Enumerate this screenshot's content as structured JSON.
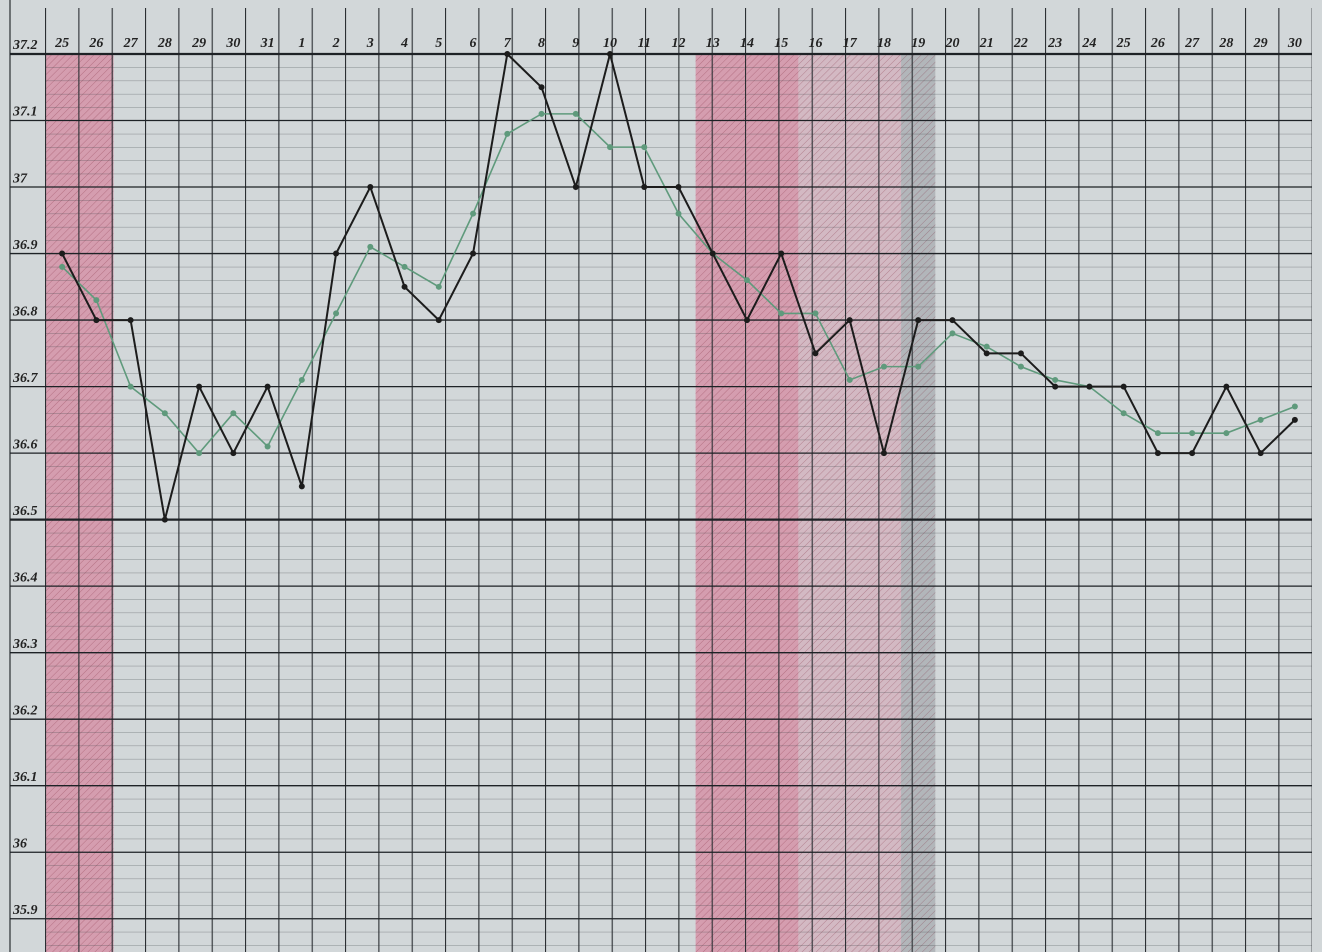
{
  "chart_data": {
    "type": "line",
    "categories": [
      "25",
      "26",
      "27",
      "28",
      "29",
      "30",
      "31",
      "1",
      "2",
      "3",
      "4",
      "5",
      "6",
      "7",
      "8",
      "9",
      "10",
      "11",
      "12",
      "13",
      "14",
      "15",
      "16",
      "17",
      "18",
      "19",
      "20",
      "21",
      "22",
      "23",
      "24",
      "25",
      "26",
      "27",
      "28",
      "29",
      "30"
    ],
    "series": [
      {
        "color": "#5f9a7c",
        "values": [
          36.88,
          36.83,
          36.7,
          36.66,
          36.6,
          36.66,
          36.61,
          36.71,
          36.81,
          36.91,
          36.88,
          36.85,
          36.96,
          37.08,
          37.11,
          37.11,
          37.06,
          37.06,
          36.96,
          36.9,
          36.86,
          36.81,
          36.81,
          36.71,
          36.73,
          36.73,
          36.78,
          36.76,
          36.73,
          36.71,
          36.7,
          36.66,
          36.63,
          36.63,
          36.63,
          36.65,
          36.67
        ]
      },
      {
        "color": "#1c1c1c",
        "values": [
          36.9,
          36.8,
          36.8,
          36.5,
          36.7,
          36.6,
          36.7,
          36.55,
          36.9,
          37.0,
          36.85,
          36.8,
          36.9,
          37.2,
          37.15,
          37.0,
          37.2,
          37.0,
          37.0,
          36.9,
          36.8,
          36.9,
          36.75,
          36.8,
          36.6,
          36.8,
          36.8,
          36.75,
          36.75,
          36.7,
          36.7,
          36.7,
          36.6,
          36.6,
          36.7,
          36.6,
          36.65
        ]
      }
    ],
    "ylim": [
      35.85,
      37.2
    ],
    "yticks": [
      37.2,
      37.1,
      37,
      36.9,
      36.8,
      36.7,
      36.6,
      36.5,
      36.4,
      36.3,
      36.2,
      36.1,
      36,
      35.9
    ],
    "grid": true
  }
}
